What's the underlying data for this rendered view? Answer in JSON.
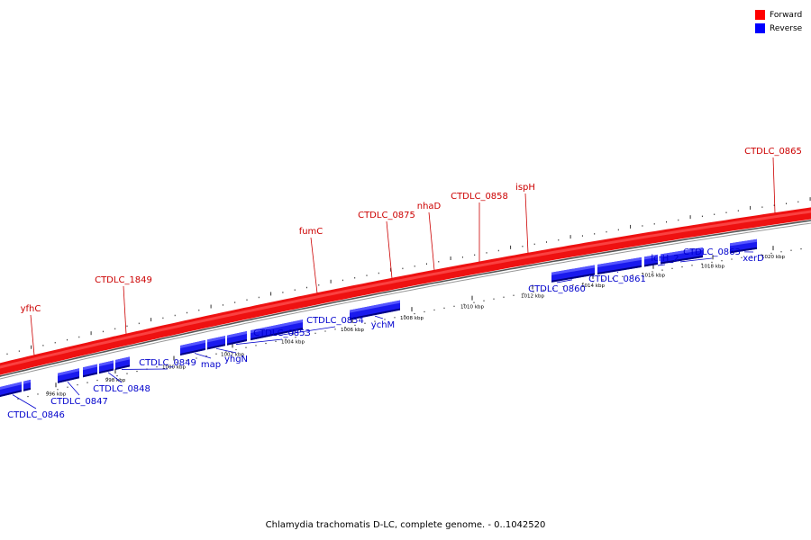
{
  "legend": {
    "items": [
      {
        "label": "Forward",
        "color": "#ff0000"
      },
      {
        "label": "Reverse",
        "color": "#0000ff"
      }
    ]
  },
  "caption": "Chlamydia trachomatis D-LC, complete genome. - 0..1042520",
  "colors": {
    "forward": "#ee1111",
    "reverse": "#1a1aee",
    "forward_label": "#cc0000",
    "reverse_label": "#0000cc",
    "backbone": "#555555"
  },
  "scale_labels": [
    "996 kbp",
    "998 kbp",
    "1000 kbp",
    "1002 kbp",
    "1004 kbp",
    "1006 kbp",
    "1008 kbp",
    "1010 kbp",
    "1012 kbp",
    "1014 kbp",
    "1016 kbp",
    "1018 kbp",
    "1020 kbp"
  ],
  "forward_labels": [
    "yfhC",
    "CTDLC_1849",
    "fumC",
    "CTDLC_0875",
    "nhaD",
    "CTDLC_0858",
    "ispH",
    "CTDLC_0865"
  ],
  "reverse_labels": [
    "CTDLC_0846",
    "CTDLC_0847",
    "CTDLC_0848",
    "CTDLC_0849",
    "map",
    "yhgN",
    "CTDLC_0853",
    "CTDLC_0854",
    "ychM",
    "CTDLC_0860",
    "CTDLC_0861",
    "lcrH_2",
    "CTDLC_0863",
    "xerD"
  ]
}
